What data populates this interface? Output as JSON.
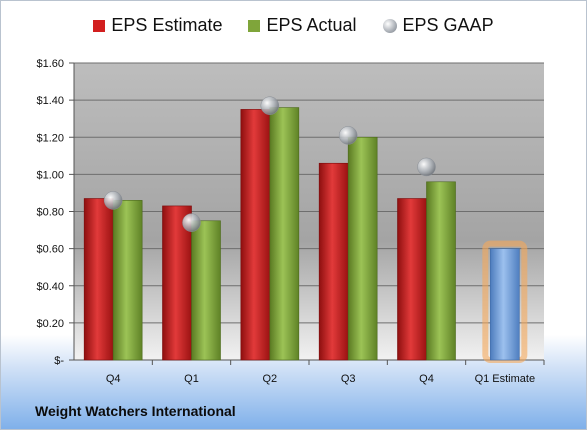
{
  "company": "Weight Watchers International",
  "legend": {
    "estimate": "EPS Estimate",
    "actual": "EPS Actual",
    "gaap": "EPS GAAP"
  },
  "colors": {
    "estimate": "#d21f1f",
    "actual": "#7fa53a",
    "future_estimate": "#6f9fd8",
    "highlight": "#f5a95a",
    "gaap": "#a9aeb5"
  },
  "chart_data": {
    "type": "bar",
    "categories": [
      "Q4",
      "Q1",
      "Q2",
      "Q3",
      "Q4",
      "Q1 Estimate"
    ],
    "series": [
      {
        "name": "EPS Estimate",
        "values": [
          0.87,
          0.83,
          1.35,
          1.06,
          0.87,
          null
        ]
      },
      {
        "name": "EPS Actual",
        "values": [
          0.86,
          0.75,
          1.36,
          1.2,
          0.96,
          null
        ]
      },
      {
        "name": "EPS GAAP",
        "values": [
          0.86,
          0.74,
          1.37,
          1.21,
          1.04,
          null
        ]
      }
    ],
    "future_estimate": {
      "category": "Q1 Estimate",
      "value": 0.6
    },
    "yticks": [
      "$1.60",
      "$1.40",
      "$1.20",
      "$1.00",
      "$0.80",
      "$0.60",
      "$0.40",
      "$0.20",
      "$-"
    ],
    "ylim": [
      0,
      1.6
    ],
    "grid": true,
    "legend_position": "top"
  }
}
